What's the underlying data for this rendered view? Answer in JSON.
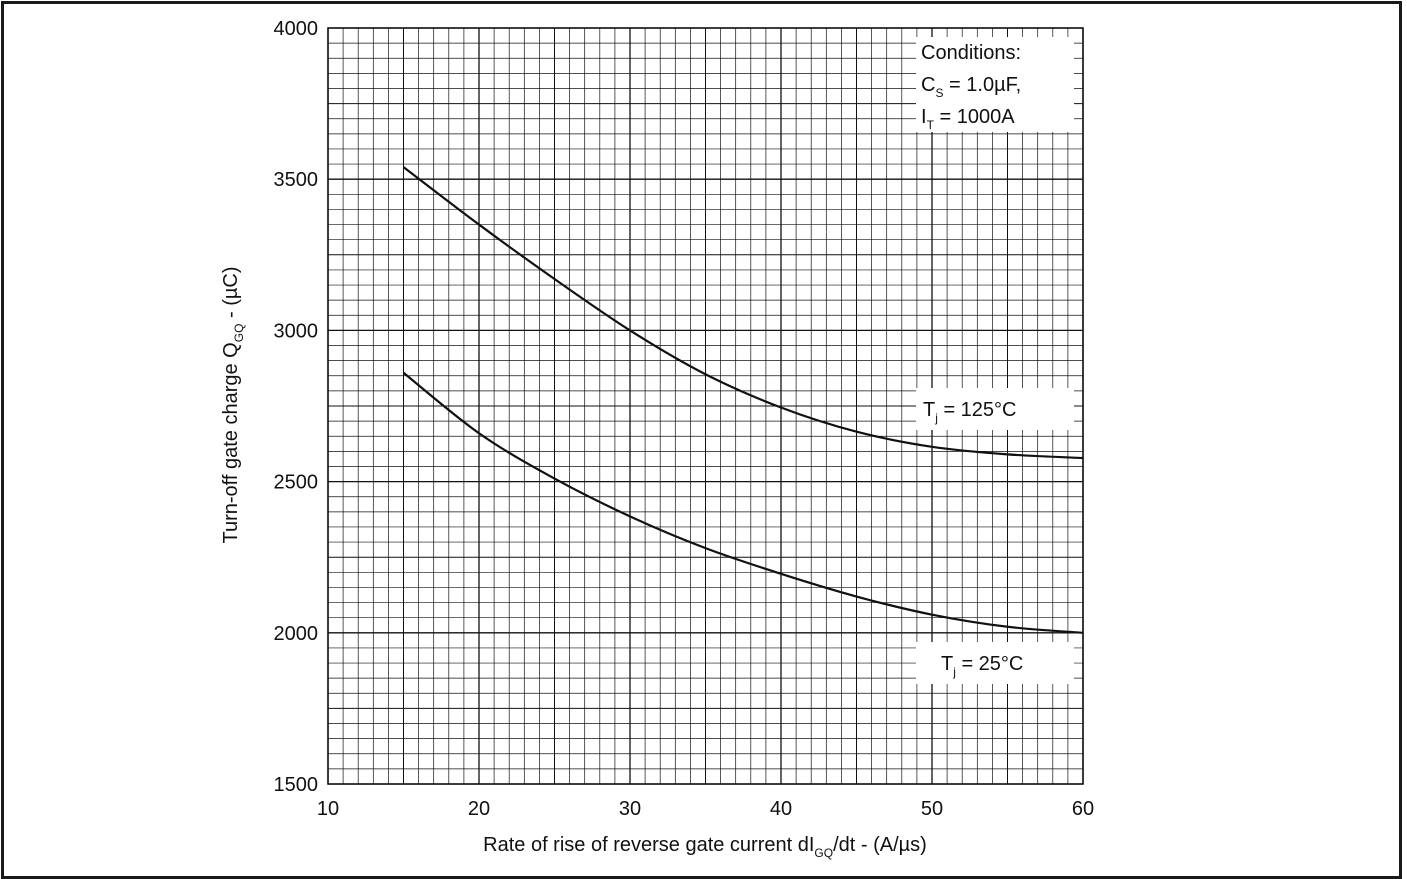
{
  "chart_data": {
    "type": "line",
    "xlabel": {
      "main": "Rate of rise of reverse gate current dI",
      "sub": "GQ",
      "tail": "/dt - (A/µs)"
    },
    "ylabel": {
      "main": "Turn-off gate charge Q",
      "sub": "GQ",
      "tail": " - (µC)"
    },
    "xlim": [
      10,
      60
    ],
    "ylim": [
      1500,
      4000
    ],
    "x_ticks": [
      "10",
      "20",
      "30",
      "40",
      "50",
      "60"
    ],
    "y_ticks": [
      "1500",
      "2000",
      "2500",
      "3000",
      "3500",
      "4000"
    ],
    "grid": true,
    "grid_minor_x_step": 1,
    "grid_minor_y_step": 50,
    "conditions": {
      "title": "Conditions:",
      "line1": {
        "sym": "C",
        "sub": "S",
        "rest": " = 1.0µF,"
      },
      "line2": {
        "sym": "I",
        "sub": "T",
        "rest": " = 1000A"
      }
    },
    "series": [
      {
        "label": {
          "sym": "T",
          "sub": "j",
          "rest": " = 125°C"
        },
        "x": [
          15,
          20,
          25,
          30,
          35,
          40,
          45,
          50,
          55,
          60
        ],
        "y": [
          3540,
          3350,
          3170,
          3000,
          2855,
          2745,
          2665,
          2615,
          2590,
          2578
        ]
      },
      {
        "label": {
          "sym": "T",
          "sub": "j",
          "rest": " = 25°C"
        },
        "x": [
          15,
          20,
          25,
          30,
          35,
          40,
          45,
          50,
          55,
          60
        ],
        "y": [
          2860,
          2660,
          2510,
          2385,
          2280,
          2195,
          2120,
          2060,
          2020,
          2000
        ]
      }
    ]
  }
}
